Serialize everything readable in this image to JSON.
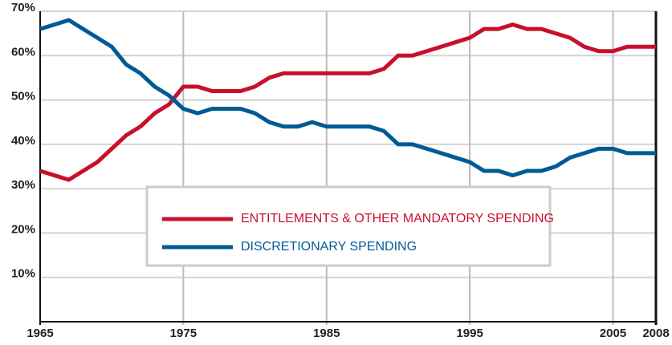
{
  "chart_data": {
    "type": "line",
    "x": [
      1965,
      1966,
      1967,
      1968,
      1969,
      1970,
      1971,
      1972,
      1973,
      1974,
      1975,
      1976,
      1977,
      1978,
      1979,
      1980,
      1981,
      1982,
      1983,
      1984,
      1985,
      1986,
      1987,
      1988,
      1989,
      1990,
      1991,
      1992,
      1993,
      1994,
      1995,
      1996,
      1997,
      1998,
      1999,
      2000,
      2001,
      2002,
      2003,
      2004,
      2005,
      2006,
      2007,
      2008
    ],
    "series": [
      {
        "name": "ENTITLEMENTS & OTHER MANDATORY SPENDING",
        "color": "#c8102e",
        "values": [
          34,
          33,
          32,
          34,
          36,
          39,
          42,
          44,
          47,
          49,
          53,
          53,
          52,
          52,
          52,
          53,
          55,
          56,
          56,
          56,
          56,
          56,
          56,
          56,
          57,
          60,
          60,
          61,
          62,
          63,
          64,
          66,
          66,
          67,
          66,
          66,
          65,
          64,
          62,
          61,
          61,
          62,
          62,
          62
        ]
      },
      {
        "name": "DISCRETIONARY SPENDING",
        "color": "#005a96",
        "values": [
          66,
          67,
          68,
          66,
          64,
          62,
          58,
          56,
          53,
          51,
          48,
          47,
          48,
          48,
          48,
          47,
          45,
          44,
          44,
          45,
          44,
          44,
          44,
          44,
          43,
          40,
          40,
          39,
          38,
          37,
          36,
          34,
          34,
          33,
          34,
          34,
          35,
          37,
          38,
          39,
          39,
          38,
          38,
          38
        ]
      }
    ],
    "xlim": [
      1965,
      2008
    ],
    "xticks": [
      1965,
      1975,
      1985,
      1995,
      2005,
      2008
    ],
    "ylim": [
      0,
      70
    ],
    "yticks": [
      {
        "value": 10,
        "label": "10%"
      },
      {
        "value": 20,
        "label": "20%"
      },
      {
        "value": 30,
        "label": "30%"
      },
      {
        "value": 40,
        "label": "40%"
      },
      {
        "value": 50,
        "label": "50%"
      },
      {
        "value": 60,
        "label": "60%"
      },
      {
        "value": 70,
        "label": "70%"
      }
    ],
    "grid": true
  }
}
